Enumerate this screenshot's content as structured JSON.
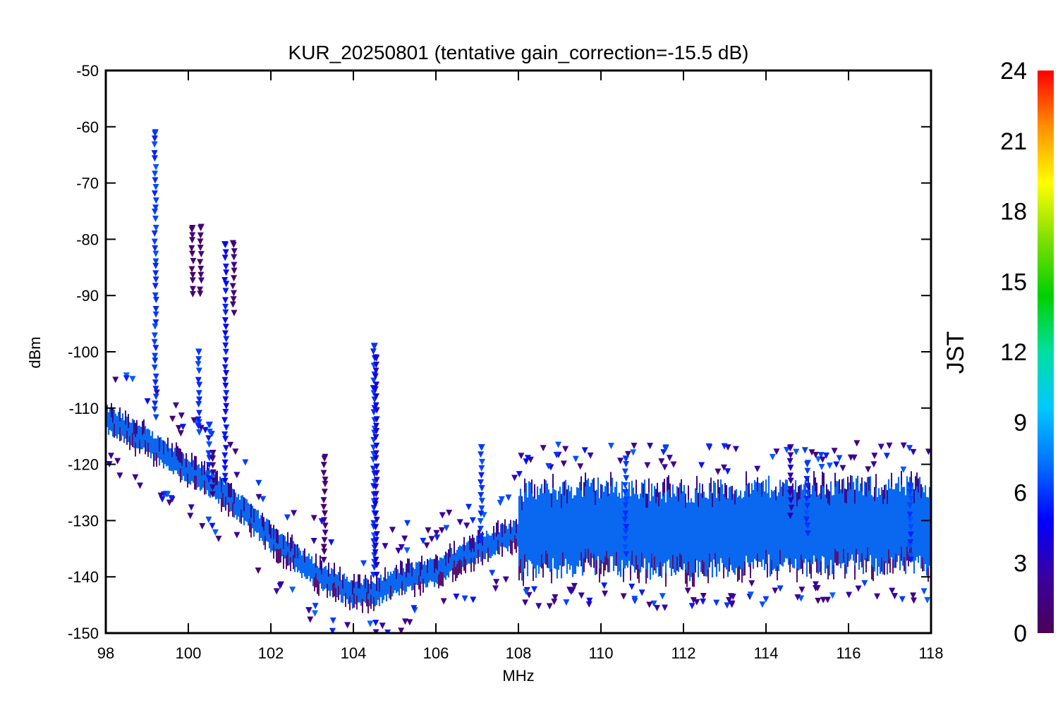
{
  "chart_data": {
    "type": "scatter",
    "title": "KUR_20250801 (tentative gain_correction=-15.5 dB)",
    "xlabel": "MHz",
    "ylabel": "dBm",
    "xlim": [
      98,
      118
    ],
    "ylim": [
      -150,
      -50
    ],
    "xticks": [
      98,
      100,
      102,
      104,
      106,
      108,
      110,
      112,
      114,
      116,
      118
    ],
    "yticks": [
      -50,
      -60,
      -70,
      -80,
      -90,
      -100,
      -110,
      -120,
      -130,
      -140,
      -150
    ],
    "grid": false,
    "marker": "triangle-down",
    "colorbar": {
      "label": "JST",
      "range": [
        0,
        24
      ],
      "ticks": [
        0,
        3,
        6,
        9,
        12,
        15,
        18,
        21,
        24
      ],
      "colors": [
        "#4b0055",
        "#3a00a0",
        "#0000ff",
        "#0070ff",
        "#00c8ff",
        "#00e0a0",
        "#00d000",
        "#80e000",
        "#ffff00",
        "#ff9000",
        "#ff0000"
      ]
    },
    "noise_floor": [
      {
        "x": 98.0,
        "y": -112
      },
      {
        "x": 99.0,
        "y": -116
      },
      {
        "x": 100.0,
        "y": -121
      },
      {
        "x": 101.0,
        "y": -126
      },
      {
        "x": 102.0,
        "y": -133
      },
      {
        "x": 103.0,
        "y": -139
      },
      {
        "x": 104.0,
        "y": -143
      },
      {
        "x": 104.5,
        "y": -143
      },
      {
        "x": 105.0,
        "y": -141
      },
      {
        "x": 106.0,
        "y": -139
      },
      {
        "x": 107.0,
        "y": -135
      },
      {
        "x": 108.0,
        "y": -132
      },
      {
        "x": 110.0,
        "y": -131
      },
      {
        "x": 112.0,
        "y": -132
      },
      {
        "x": 114.0,
        "y": -131
      },
      {
        "x": 116.0,
        "y": -131
      },
      {
        "x": 118.0,
        "y": -131
      }
    ],
    "floor_spread_db": {
      "below_108": 4,
      "above_108": 14
    },
    "signals": [
      {
        "x": 99.2,
        "y_top": -61,
        "y_bottom": -112,
        "jst": 6
      },
      {
        "x": 100.1,
        "y_top": -78,
        "y_bottom": -90,
        "jst": 1
      },
      {
        "x": 100.3,
        "y_top": -78,
        "y_bottom": -90,
        "jst": 1
      },
      {
        "x": 100.25,
        "y_top": -100,
        "y_bottom": -115,
        "jst": 6
      },
      {
        "x": 100.5,
        "y_top": -113,
        "y_bottom": -123,
        "jst": 6
      },
      {
        "x": 100.6,
        "y_top": -118,
        "y_bottom": -126,
        "jst": 1
      },
      {
        "x": 100.9,
        "y_top": -81,
        "y_bottom": -124,
        "jst": 5
      },
      {
        "x": 101.1,
        "y_top": -81,
        "y_bottom": -94,
        "jst": 1
      },
      {
        "x": 103.3,
        "y_top": -119,
        "y_bottom": -137,
        "jst": 1
      },
      {
        "x": 104.5,
        "y_top": -99,
        "y_bottom": -140,
        "jst": 6
      },
      {
        "x": 104.55,
        "y_top": -101,
        "y_bottom": -140,
        "jst": 4
      },
      {
        "x": 107.1,
        "y_top": -117,
        "y_bottom": -134,
        "jst": 6
      },
      {
        "x": 110.6,
        "y_top": -119,
        "y_bottom": -136,
        "jst": 6
      },
      {
        "x": 114.6,
        "y_top": -117,
        "y_bottom": -130,
        "jst": 3
      },
      {
        "x": 115.0,
        "y_top": -120,
        "y_bottom": -132,
        "jst": 6
      },
      {
        "x": 117.5,
        "y_top": -124,
        "y_bottom": -138,
        "jst": 6
      }
    ]
  }
}
